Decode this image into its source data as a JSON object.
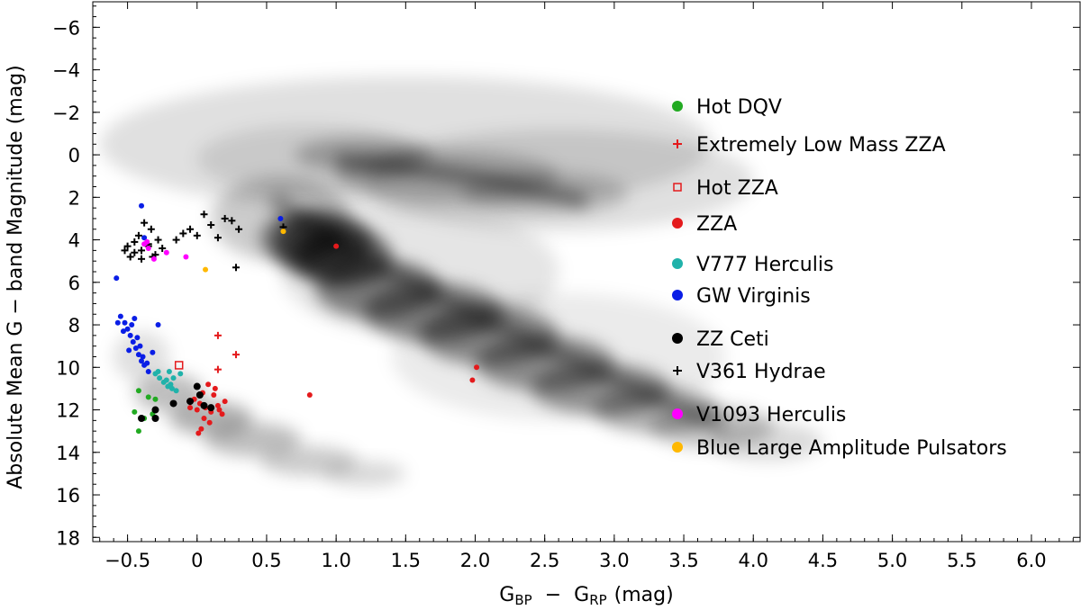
{
  "chart_data": {
    "type": "scatter",
    "xlabel": {
      "main": "G",
      "sub1": "BP",
      "minus": "−",
      "sub2": "RP",
      "unit": "(mag)"
    },
    "ylabel": "Absolute Mean G − band Magnitude (mag)",
    "xlim": [
      -0.75,
      6.35
    ],
    "ylim": [
      18.2,
      -7.2
    ],
    "x_ticks": [
      -0.5,
      0,
      0.5,
      1.0,
      1.5,
      2.0,
      2.5,
      3.0,
      3.5,
      4.0,
      4.5,
      5.0,
      5.5,
      6.0
    ],
    "x_tick_labels": [
      "−0.5",
      "0",
      "0.5",
      "1.0",
      "1.5",
      "2.0",
      "2.5",
      "3.0",
      "3.5",
      "4.0",
      "4.5",
      "5.0",
      "5.5",
      "6.0"
    ],
    "y_ticks": [
      -6,
      -4,
      -2,
      0,
      2,
      4,
      6,
      8,
      10,
      12,
      14,
      16,
      18
    ],
    "y_tick_labels": [
      "−6",
      "−4",
      "−2",
      "0",
      "2",
      "4",
      "6",
      "8",
      "10",
      "12",
      "14",
      "16",
      "18"
    ],
    "grid": false,
    "legend_position": "right",
    "background_note": "Gaia field stars shown as gray density (main sequence, giant branch, white dwarf sequence)",
    "series": [
      {
        "name": "Hot DQV",
        "marker": "circle",
        "color": "#22aa22",
        "points": [
          [
            -0.42,
            11.1
          ],
          [
            -0.35,
            11.4
          ],
          [
            -0.3,
            11.5
          ],
          [
            -0.45,
            12.1
          ],
          [
            -0.38,
            12.4
          ],
          [
            -0.42,
            13.0
          ],
          [
            -0.32,
            12.2
          ]
        ]
      },
      {
        "name": "Extremely Low Mass ZZA",
        "marker": "plus",
        "color": "#e41a1c",
        "points": [
          [
            0.15,
            8.5
          ],
          [
            0.28,
            9.4
          ],
          [
            0.15,
            10.1
          ],
          [
            -0.05,
            11.6
          ]
        ]
      },
      {
        "name": "Hot ZZA",
        "marker": "open-square",
        "color": "#e41a1c",
        "points": [
          [
            -0.13,
            9.9
          ]
        ]
      },
      {
        "name": "ZZA",
        "marker": "circle",
        "color": "#e41a1c",
        "points": [
          [
            0.02,
            11.7
          ],
          [
            0.06,
            11.9
          ],
          [
            0.1,
            12.1
          ],
          [
            -0.02,
            11.5
          ],
          [
            0.12,
            11.3
          ],
          [
            0.05,
            12.4
          ],
          [
            0.15,
            11.8
          ],
          [
            0.08,
            10.8
          ],
          [
            0.18,
            12.2
          ],
          [
            0.0,
            12.0
          ],
          [
            0.03,
            12.9
          ],
          [
            -0.05,
            11.9
          ],
          [
            0.13,
            11.0
          ],
          [
            0.2,
            11.6
          ],
          [
            0.09,
            12.6
          ],
          [
            0.01,
            13.1
          ],
          [
            0.81,
            11.3
          ],
          [
            1.0,
            4.3
          ],
          [
            1.98,
            10.6
          ],
          [
            2.01,
            10.0
          ],
          [
            0.16,
            12.0
          ],
          [
            0.04,
            11.2
          ]
        ]
      },
      {
        "name": "V777 Herculis",
        "marker": "circle",
        "color": "#20b2aa",
        "points": [
          [
            -0.3,
            10.3
          ],
          [
            -0.27,
            10.5
          ],
          [
            -0.24,
            10.7
          ],
          [
            -0.21,
            10.9
          ],
          [
            -0.18,
            11.0
          ],
          [
            -0.15,
            11.1
          ],
          [
            -0.22,
            10.6
          ],
          [
            -0.28,
            10.2
          ],
          [
            -0.19,
            10.8
          ],
          [
            -0.12,
            10.3
          ],
          [
            -0.2,
            10.2
          ],
          [
            -0.17,
            10.5
          ]
        ]
      },
      {
        "name": "GW Virginis",
        "marker": "circle",
        "color": "#0a1ee6",
        "points": [
          [
            -0.55,
            7.6
          ],
          [
            -0.52,
            7.9
          ],
          [
            -0.5,
            8.2
          ],
          [
            -0.48,
            8.5
          ],
          [
            -0.46,
            8.8
          ],
          [
            -0.44,
            9.1
          ],
          [
            -0.42,
            9.4
          ],
          [
            -0.4,
            9.7
          ],
          [
            -0.38,
            9.9
          ],
          [
            -0.53,
            8.3
          ],
          [
            -0.47,
            8.0
          ],
          [
            -0.43,
            8.6
          ],
          [
            -0.41,
            9.0
          ],
          [
            -0.39,
            9.5
          ],
          [
            -0.36,
            9.8
          ],
          [
            -0.57,
            7.9
          ],
          [
            -0.45,
            7.7
          ],
          [
            -0.49,
            9.2
          ],
          [
            -0.35,
            10.2
          ],
          [
            -0.58,
            5.8
          ],
          [
            -0.4,
            2.4
          ],
          [
            -0.38,
            3.9
          ],
          [
            -0.28,
            8.0
          ],
          [
            0.6,
            3.0
          ],
          [
            -0.32,
            9.3
          ]
        ]
      },
      {
        "name": "ZZ Ceti",
        "marker": "circle",
        "color": "#000000",
        "points": [
          [
            -0.4,
            12.4
          ],
          [
            -0.3,
            12.0
          ],
          [
            -0.3,
            12.4
          ],
          [
            -0.17,
            11.7
          ],
          [
            -0.05,
            11.6
          ],
          [
            0.0,
            10.9
          ],
          [
            0.05,
            11.8
          ],
          [
            0.1,
            11.9
          ],
          [
            0.02,
            11.3
          ]
        ]
      },
      {
        "name": "V361 Hydrae",
        "marker": "plus",
        "color": "#000000",
        "points": [
          [
            -0.5,
            4.3
          ],
          [
            -0.45,
            4.1
          ],
          [
            -0.4,
            4.5
          ],
          [
            -0.35,
            4.2
          ],
          [
            -0.3,
            4.7
          ],
          [
            -0.25,
            4.4
          ],
          [
            -0.48,
            4.8
          ],
          [
            -0.42,
            3.8
          ],
          [
            -0.38,
            3.2
          ],
          [
            -0.33,
            3.5
          ],
          [
            -0.28,
            4.0
          ],
          [
            -0.45,
            4.6
          ],
          [
            -0.4,
            4.9
          ],
          [
            -0.35,
            4.3
          ],
          [
            -0.1,
            3.7
          ],
          [
            -0.05,
            3.5
          ],
          [
            0.0,
            3.8
          ],
          [
            -0.15,
            4.0
          ],
          [
            0.05,
            2.8
          ],
          [
            0.1,
            3.3
          ],
          [
            0.2,
            3.0
          ],
          [
            0.25,
            3.1
          ],
          [
            0.3,
            3.5
          ],
          [
            0.15,
            3.9
          ],
          [
            0.28,
            5.3
          ],
          [
            0.62,
            3.4
          ],
          [
            -0.32,
            4.8
          ],
          [
            -0.52,
            4.5
          ]
        ]
      },
      {
        "name": "V1093 Herculis",
        "marker": "circle",
        "color": "#ff00ff",
        "points": [
          [
            -0.38,
            4.2
          ],
          [
            -0.35,
            4.4
          ],
          [
            -0.22,
            4.6
          ],
          [
            -0.08,
            4.8
          ],
          [
            -0.31,
            4.9
          ],
          [
            -0.36,
            4.1
          ]
        ]
      },
      {
        "name": "Blue Large Amplitude Pulsators",
        "marker": "circle",
        "color": "#ffb800",
        "points": [
          [
            0.06,
            5.4
          ],
          [
            0.62,
            3.6
          ]
        ]
      }
    ]
  }
}
